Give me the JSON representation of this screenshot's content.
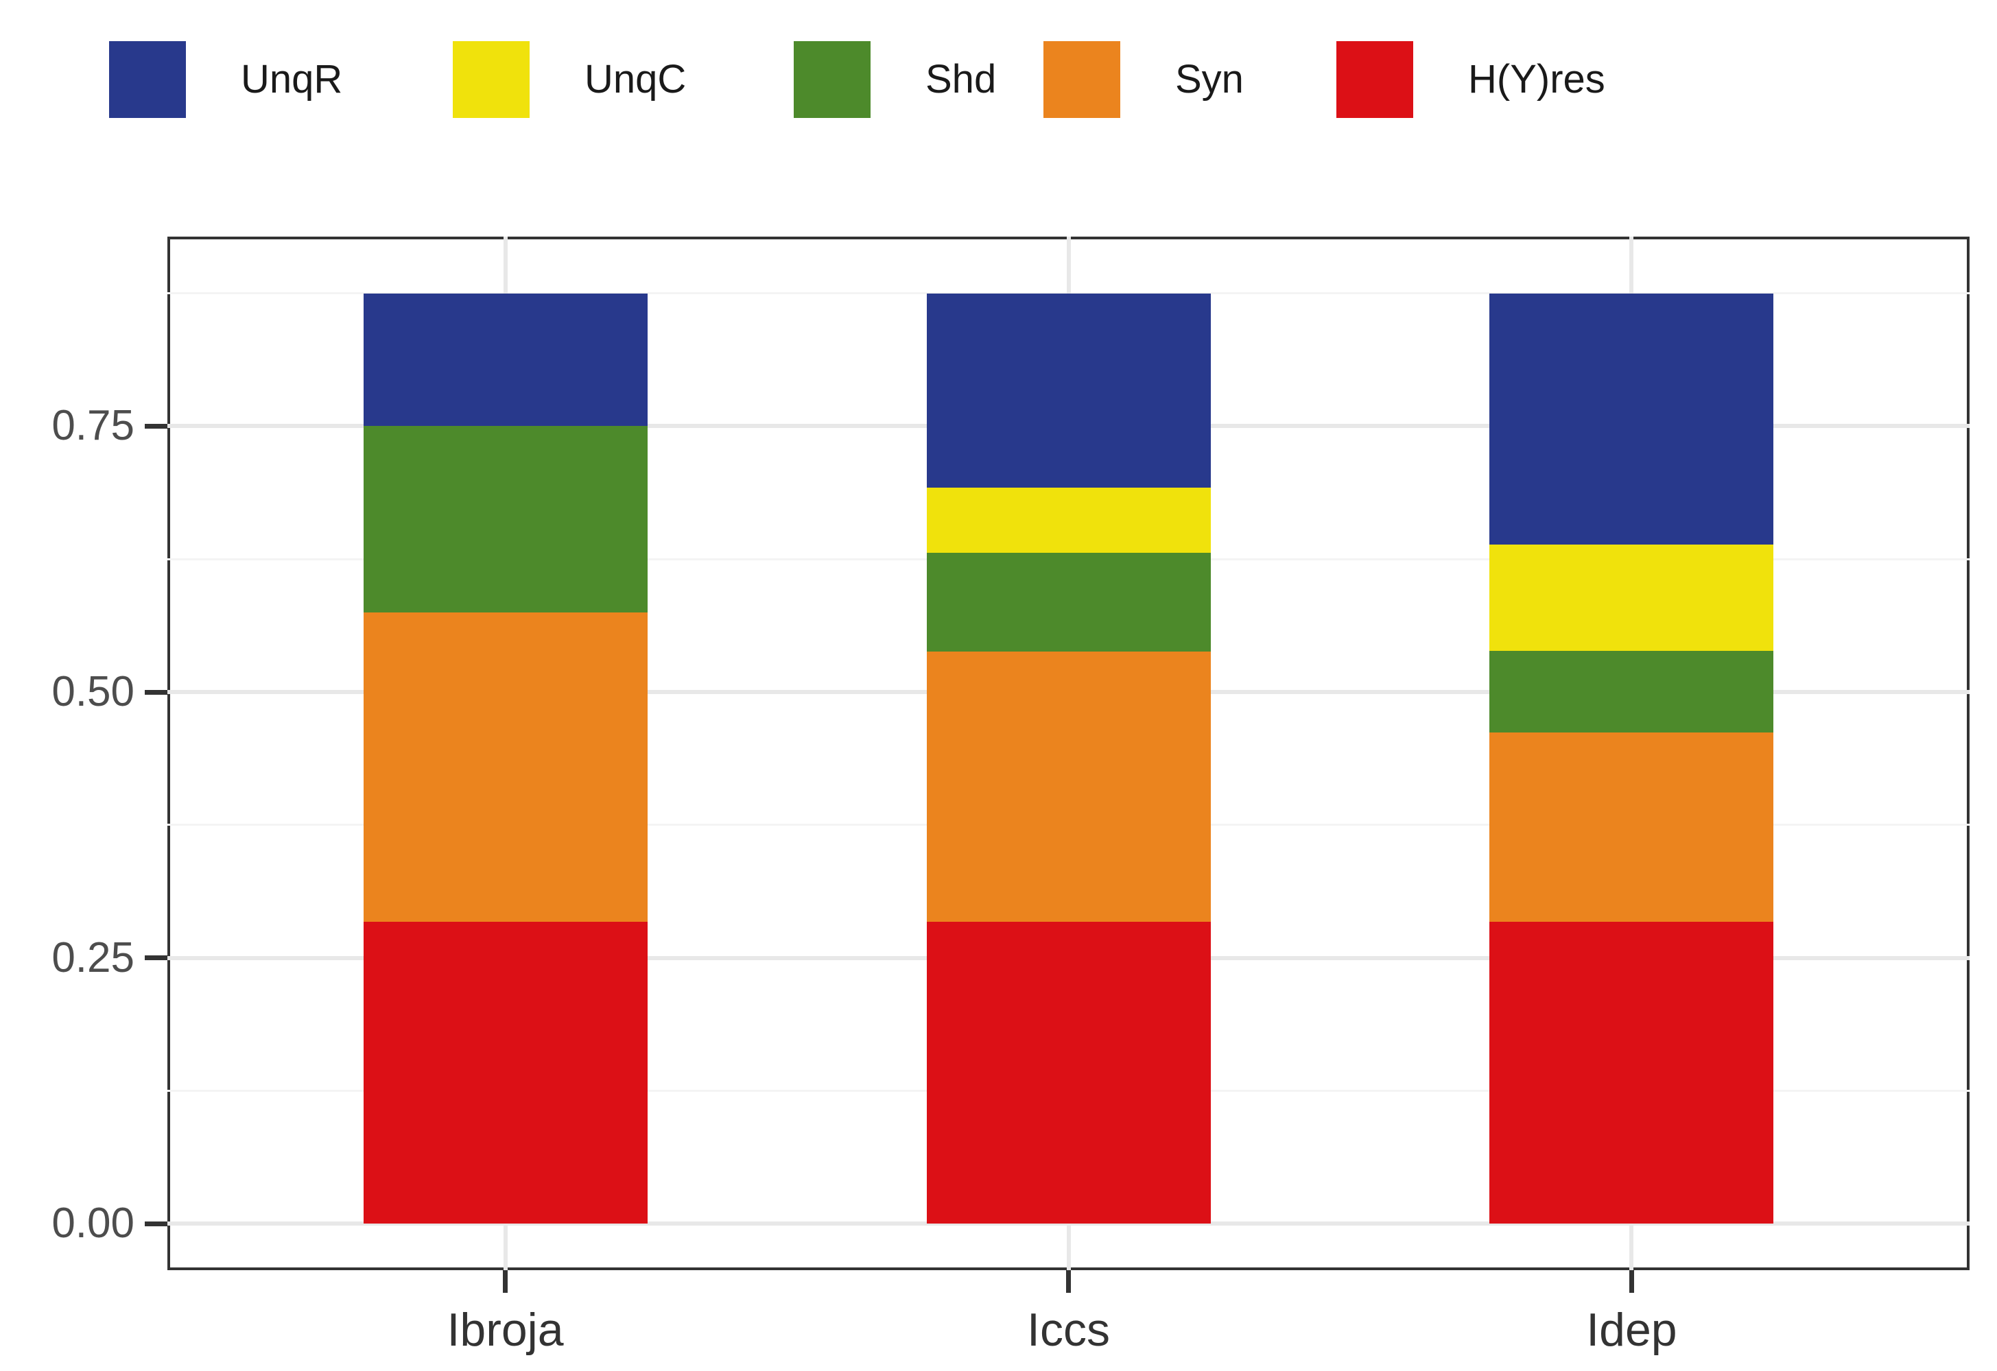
{
  "chart_data": {
    "type": "bar",
    "subtype": "stacked",
    "title": "",
    "xlabel": "",
    "ylabel": "",
    "categories": [
      "Ibroja",
      "Iccs",
      "Idep"
    ],
    "series": [
      {
        "name": "UnqR",
        "color": "#28398C",
        "values": [
          0.125,
          0.183,
          0.236
        ]
      },
      {
        "name": "UnqC",
        "color": "#F0E20C",
        "values": [
          0.0,
          0.061,
          0.1
        ]
      },
      {
        "name": "Shd",
        "color": "#4D8A2B",
        "values": [
          0.175,
          0.093,
          0.077
        ]
      },
      {
        "name": "Syn",
        "color": "#EB841E",
        "values": [
          0.291,
          0.254,
          0.178
        ]
      },
      {
        "name": "H(Y)res",
        "color": "#DC1016",
        "values": [
          0.284,
          0.284,
          0.284
        ]
      }
    ],
    "stack_order_bottom_to_top": [
      "H(Y)res",
      "Syn",
      "Shd",
      "UnqC",
      "UnqR"
    ],
    "bar_totals": [
      0.875,
      0.875,
      0.875
    ],
    "ylim": [
      -0.0437,
      0.9283
    ],
    "yticks_major": [
      0,
      0.25,
      0.5,
      0.75
    ],
    "ytick_labels": [
      "0.00",
      "0.25",
      "0.50",
      "0.75"
    ],
    "yticks_minor": [
      0.125,
      0.375,
      0.625,
      0.875
    ],
    "grid": "on",
    "legend_position": "top",
    "colors": {
      "background": "#FFFFFF",
      "grid_major": "#E8E8E8",
      "grid_minor": "#F4F4F4",
      "panel_border": "#333333",
      "tick_mark": "#333333",
      "y_tick_label_text": "#4D4D4D",
      "x_tick_label_text": "#333333",
      "legend_text": "#1A1A1A"
    }
  }
}
